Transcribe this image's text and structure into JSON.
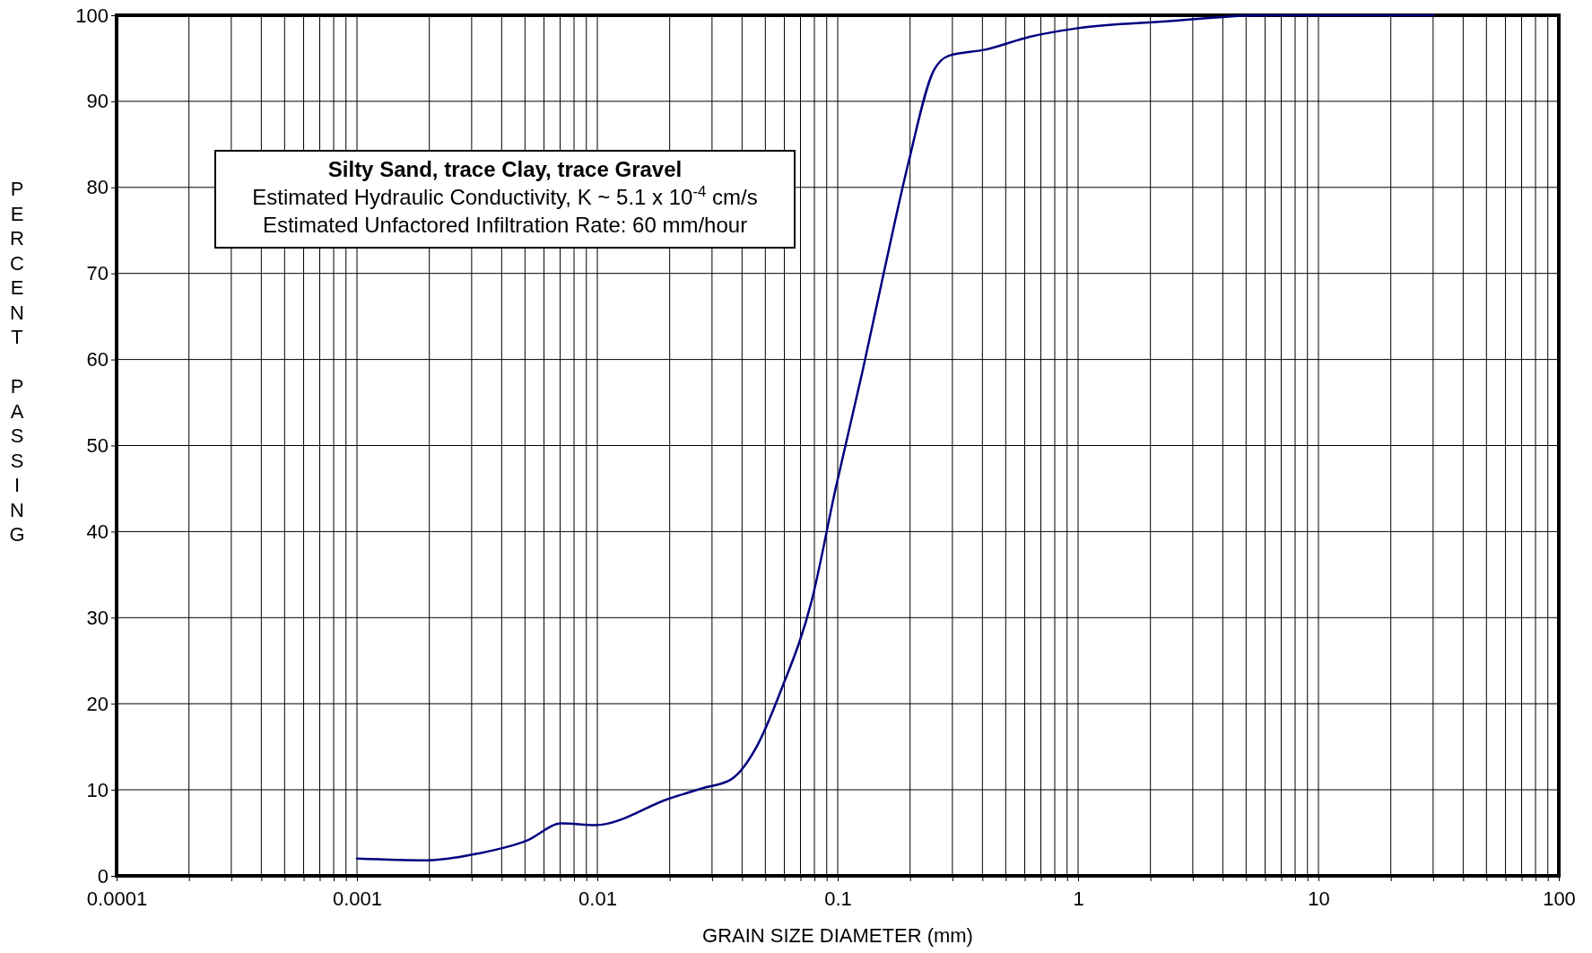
{
  "chart_data": {
    "type": "line",
    "xlabel": "GRAIN SIZE DIAMETER (mm)",
    "ylabel": "PERCENT PASSING",
    "log": "x",
    "grid": true,
    "marker": "none",
    "line_style": "solid",
    "annotations": [
      "Silty Sand, trace Clay, trace Gravel",
      "Estimated Hydraulic Conductivity, K ~ 5.1 x 10$^{-4}$ cm/s",
      "Estimated Unfactored Infiltration Rate: 60 mm/hour"
    ],
    "xlim": [
      0.0001,
      100
    ],
    "ylim": [
      0,
      100
    ],
    "xticks": [
      {
        "value": 0.0001,
        "label": "0.0001"
      },
      {
        "value": 0.0002,
        "label": null
      },
      {
        "value": 0.0003,
        "label": null
      },
      {
        "value": 0.0004,
        "label": null
      },
      {
        "value": 0.0005,
        "label": null
      },
      {
        "value": 0.0006,
        "label": null
      },
      {
        "value": 0.0007,
        "label": null
      },
      {
        "value": 0.0008,
        "label": null
      },
      {
        "value": 0.0009,
        "label": null
      },
      {
        "value": 0.001,
        "label": "0.001"
      },
      {
        "value": 0.002,
        "label": null
      },
      {
        "value": 0.003,
        "label": null
      },
      {
        "value": 0.004,
        "label": null
      },
      {
        "value": 0.005,
        "label": null
      },
      {
        "value": 0.006,
        "label": null
      },
      {
        "value": 0.007,
        "label": null
      },
      {
        "value": 0.008,
        "label": null
      },
      {
        "value": 0.009,
        "label": null
      },
      {
        "value": 0.01,
        "label": "0.01"
      },
      {
        "value": 0.02,
        "label": null
      },
      {
        "value": 0.03,
        "label": null
      },
      {
        "value": 0.04,
        "label": null
      },
      {
        "value": 0.05,
        "label": null
      },
      {
        "value": 0.06,
        "label": null
      },
      {
        "value": 0.07,
        "label": null
      },
      {
        "value": 0.08,
        "label": null
      },
      {
        "value": 0.09,
        "label": null
      },
      {
        "value": 0.1,
        "label": "0.1"
      },
      {
        "value": 0.2,
        "label": null
      },
      {
        "value": 0.3,
        "label": null
      },
      {
        "value": 0.4,
        "label": null
      },
      {
        "value": 0.5,
        "label": null
      },
      {
        "value": 0.6,
        "label": null
      },
      {
        "value": 0.7,
        "label": null
      },
      {
        "value": 0.8,
        "label": null
      },
      {
        "value": 0.9,
        "label": null
      },
      1,
      {
        "value": 2,
        "label": null
      },
      {
        "value": 3,
        "label": null
      },
      {
        "value": 4,
        "label": null
      },
      {
        "value": 5,
        "label": null
      },
      {
        "value": 6,
        "label": null
      },
      {
        "value": 7,
        "label": null
      },
      {
        "value": 8,
        "label": null
      },
      {
        "value": 9,
        "label": null
      },
      10,
      {
        "value": 20,
        "label": null
      },
      {
        "value": 30,
        "label": null
      },
      {
        "value": 40,
        "label": null
      },
      {
        "value": 50,
        "label": null
      },
      {
        "value": 60,
        "label": null
      },
      {
        "value": 70,
        "label": null
      },
      {
        "value": 80,
        "label": null
      },
      {
        "value": 90,
        "label": null
      },
      100
    ],
    "yticks": [
      0,
      10,
      20,
      30,
      40,
      50,
      60,
      70,
      80,
      90,
      100
    ],
    "series": [
      {
        "color": "#000080",
        "x": [
          0.001,
          0.00195,
          0.0032,
          0.0051,
          0.0071,
          0.0098,
          0.02,
          0.0275,
          0.036,
          0.046,
          0.058,
          0.078,
          0.098,
          0.127,
          0.155,
          0.197,
          0.25,
          0.29,
          0.41,
          0.63,
          1.0,
          2.35,
          5.9,
          30
        ],
        "values": [
          2.0,
          1.8,
          2.6,
          4.1,
          6.1,
          5.9,
          9.0,
          10.2,
          11.2,
          15,
          21.5,
          32,
          45,
          58.7,
          69.9,
          82.9,
          93.5,
          95.3,
          96.0,
          97.5,
          98.5,
          99.3,
          100,
          100
        ]
      }
    ]
  }
}
